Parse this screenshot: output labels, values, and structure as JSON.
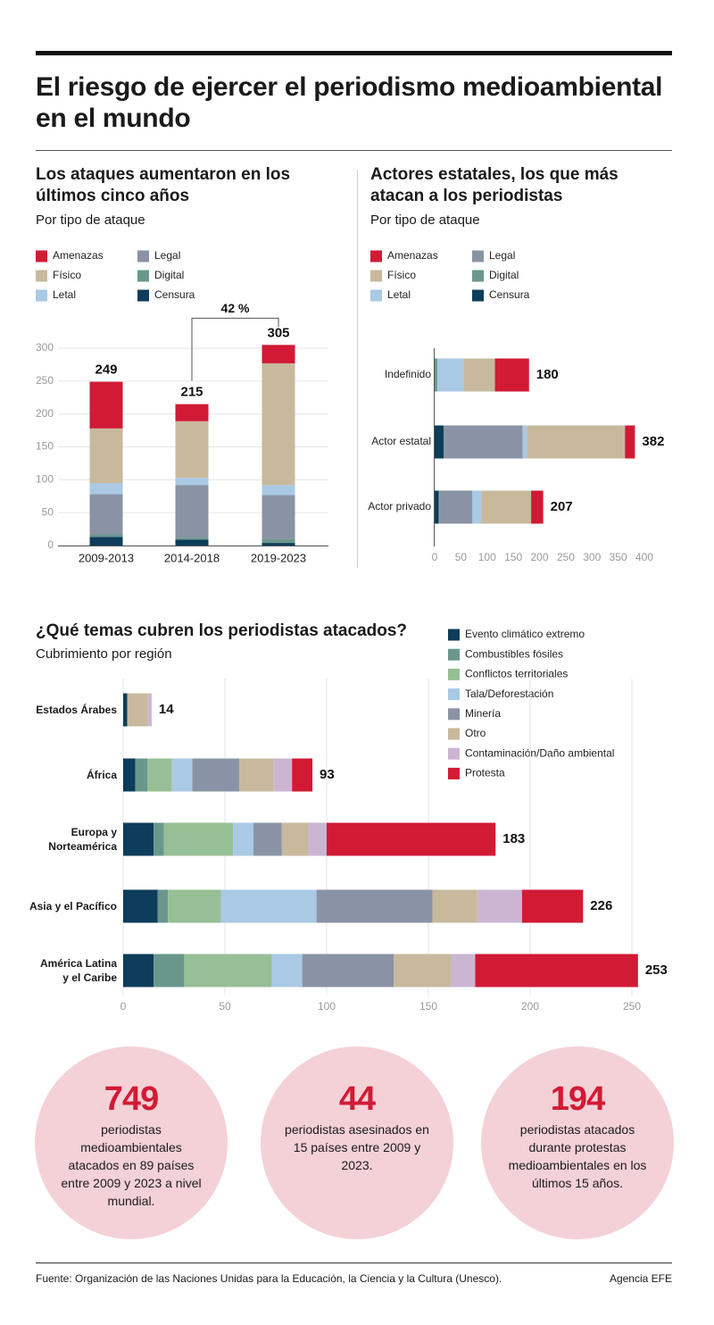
{
  "header": {
    "title": "El riesgo de ejercer el periodismo medioambiental en el mundo"
  },
  "chart_data": [
    {
      "type": "bar",
      "orientation": "vertical",
      "stacked": true,
      "title": "Los ataques aumentaron en los últimos cinco años",
      "subtitle": "Por tipo de ataque",
      "categories": [
        "2009-2013",
        "2014-2018",
        "2019-2023"
      ],
      "series": [
        {
          "name": "Amenazas",
          "color": "#d21a35",
          "values": [
            71,
            26,
            28
          ]
        },
        {
          "name": "Físico",
          "color": "#c8b99c",
          "values": [
            83,
            86,
            185
          ]
        },
        {
          "name": "Letal",
          "color": "#a9c9e4",
          "values": [
            17,
            11,
            15
          ]
        },
        {
          "name": "Legal",
          "color": "#8a93a5",
          "values": [
            61,
            80,
            67
          ]
        },
        {
          "name": "Digital",
          "color": "#6a978c",
          "values": [
            4,
            3,
            6
          ]
        },
        {
          "name": "Censura",
          "color": "#0d3d5a",
          "values": [
            13,
            9,
            4
          ]
        }
      ],
      "totals": [
        249,
        215,
        305
      ],
      "annotation": "42 %",
      "ylim": [
        0,
        300
      ],
      "yticks": [
        0,
        50,
        100,
        150,
        200,
        250,
        300
      ],
      "grid": true
    },
    {
      "type": "bar",
      "orientation": "horizontal",
      "stacked": true,
      "title": "Actores estatales, los que más atacan a los periodistas",
      "subtitle": "Por tipo de ataque",
      "categories": [
        "Indefinido",
        "Actor estatal",
        "Actor privado"
      ],
      "series": [
        {
          "name": "Amenazas",
          "color": "#d21a35",
          "values": [
            65,
            19,
            23
          ]
        },
        {
          "name": "Físico",
          "color": "#c8b99c",
          "values": [
            60,
            187,
            95
          ]
        },
        {
          "name": "Letal",
          "color": "#a9c9e4",
          "values": [
            50,
            8,
            17
          ]
        },
        {
          "name": "Legal",
          "color": "#8a93a5",
          "values": [
            0,
            150,
            63
          ]
        },
        {
          "name": "Digital",
          "color": "#6a978c",
          "values": [
            5,
            1,
            1
          ]
        },
        {
          "name": "Censura",
          "color": "#0d3d5a",
          "values": [
            0,
            17,
            8
          ]
        }
      ],
      "totals": [
        180,
        382,
        207
      ],
      "xlim": [
        0,
        400
      ],
      "xticks": [
        0,
        50,
        100,
        150,
        200,
        250,
        300,
        350,
        400
      ],
      "grid": false
    },
    {
      "type": "bar",
      "orientation": "horizontal",
      "stacked": true,
      "order": "forward",
      "title": "¿Qué temas cubren los periodistas atacados?",
      "subtitle": "Cubrimiento por región",
      "categories": [
        "Estados Árabes",
        "África",
        "Europa y\nNorteamérica",
        "Asia y el Pacífico",
        "América Latina\ny el Caribe"
      ],
      "series": [
        {
          "name": "Evento climático extremo",
          "color": "#0d3d5a",
          "values": [
            2,
            6,
            15,
            17,
            15
          ]
        },
        {
          "name": "Combustibles fósiles",
          "color": "#6a978c",
          "values": [
            0,
            6,
            5,
            5,
            15
          ]
        },
        {
          "name": "Conflictos territoriales",
          "color": "#97bf95",
          "values": [
            0,
            12,
            34,
            26,
            43
          ]
        },
        {
          "name": "Tala/Deforestación",
          "color": "#a9c9e4",
          "values": [
            0,
            10,
            10,
            47,
            15
          ]
        },
        {
          "name": "Minería",
          "color": "#8a93a5",
          "values": [
            0,
            23,
            14,
            57,
            45
          ]
        },
        {
          "name": "Otro",
          "color": "#c8b99c",
          "values": [
            10,
            17,
            13,
            22,
            28
          ]
        },
        {
          "name": "Contaminación/Daño ambiental",
          "color": "#cbb5d3",
          "values": [
            2,
            9,
            9,
            22,
            12
          ]
        },
        {
          "name": "Protesta",
          "color": "#d21a35",
          "values": [
            0,
            10,
            83,
            30,
            80
          ]
        }
      ],
      "totals": [
        14,
        93,
        183,
        226,
        253
      ],
      "xlim": [
        0,
        250
      ],
      "xticks": [
        0,
        50,
        100,
        150,
        200,
        250
      ],
      "grid": true
    }
  ],
  "stats": [
    {
      "number": "749",
      "text": "periodistas medioambientales atacados en 89 países entre 2009 y 2023 a nivel mundial."
    },
    {
      "number": "44",
      "text": "periodistas asesinados en 15 países entre 2009 y 2023."
    },
    {
      "number": "194",
      "text": "periodistas atacados durante protestas medioambientales en los últimos 15 años."
    }
  ],
  "footer": {
    "source": "Fuente: Organización de las Naciones Unidas para la Educación, la Ciencia y la Cultura (Unesco).",
    "credit": "Agencia EFE"
  }
}
